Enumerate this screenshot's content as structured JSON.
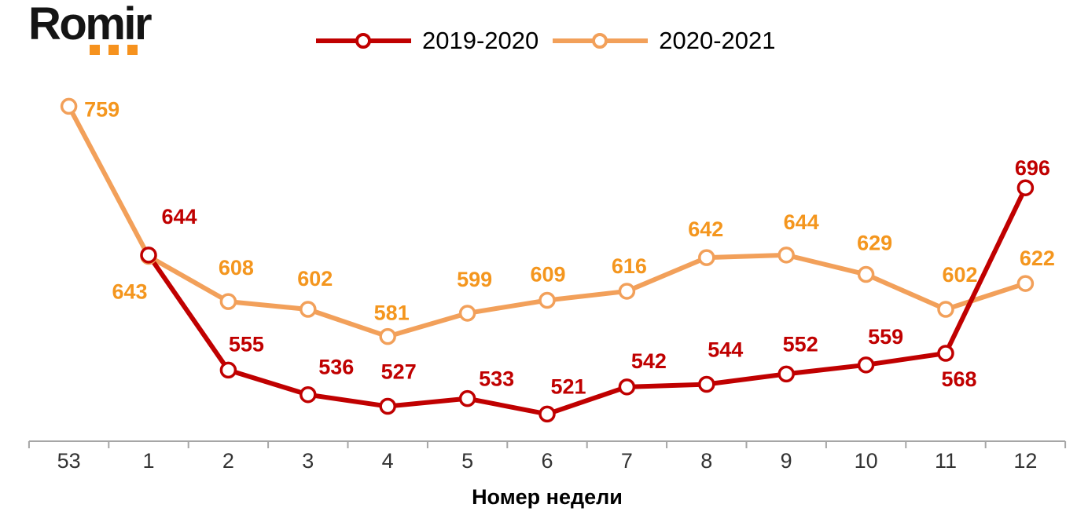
{
  "logo": {
    "text": "Romir"
  },
  "colors": {
    "red": "#C00000",
    "orange_line": "#F2A05A",
    "orange_label": "#F4961E",
    "axis": "#A6A6A6",
    "tick_label": "#333333",
    "logo_dot": "#F6921E",
    "legend_text": "#000000"
  },
  "chart_data": {
    "type": "line",
    "title": "",
    "categories": [
      "53",
      "1",
      "2",
      "3",
      "4",
      "5",
      "6",
      "7",
      "8",
      "9",
      "10",
      "11",
      "12"
    ],
    "xlabel": "Номер недели",
    "ylabel": "",
    "ylim": [
      500,
      780
    ],
    "grid": false,
    "legend_position": "top-center",
    "marker": "open-circle",
    "series": [
      {
        "name": "2019-2020",
        "color": "#C00000",
        "label_color": "#C00000",
        "values": [
          null,
          644,
          555,
          536,
          527,
          533,
          521,
          542,
          544,
          552,
          559,
          568,
          696
        ],
        "label_offsets": [
          null,
          [
            39,
            -50
          ],
          [
            23,
            -34
          ],
          [
            36,
            -36
          ],
          [
            14,
            -45
          ],
          [
            37,
            -26
          ],
          [
            27,
            -36
          ],
          [
            28,
            -34
          ],
          [
            24,
            -45
          ],
          [
            18,
            -39
          ],
          [
            25,
            -37
          ],
          [
            17,
            32
          ],
          [
            9,
            -26
          ]
        ]
      },
      {
        "name": "2020-2021",
        "color": "#F2A05A",
        "label_color": "#F4961E",
        "values": [
          759,
          643,
          608,
          602,
          581,
          599,
          609,
          616,
          642,
          644,
          629,
          602,
          622
        ],
        "label_offsets": [
          [
            42,
            3
          ],
          [
            -24,
            44
          ],
          [
            10,
            -44
          ],
          [
            9,
            -40
          ],
          [
            5,
            -31
          ],
          [
            9,
            -44
          ],
          [
            1,
            -34
          ],
          [
            3,
            -33
          ],
          [
            -1,
            -37
          ],
          [
            19,
            -43
          ],
          [
            11,
            -41
          ],
          [
            18,
            -45
          ],
          [
            15,
            -33
          ]
        ]
      }
    ]
  }
}
